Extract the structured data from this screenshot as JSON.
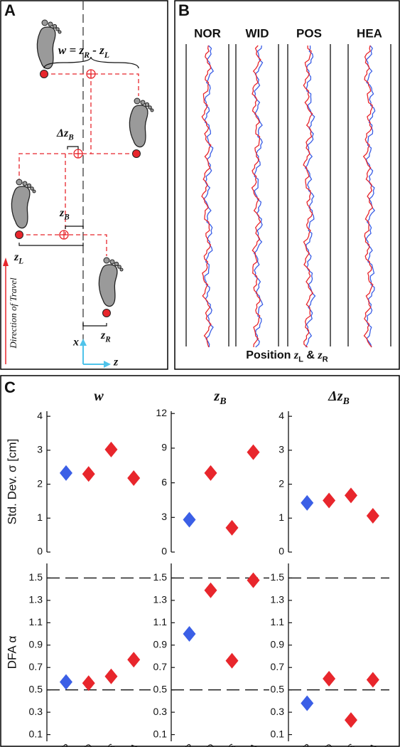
{
  "panel_labels": [
    "A",
    "B",
    "C"
  ],
  "diagram": {
    "width": [
      {
        "t": "w = z"
      },
      {
        "t": "R",
        "sub": true
      },
      {
        "t": " - z"
      },
      {
        "t": "L",
        "sub": true
      }
    ],
    "delta_zb": [
      {
        "t": "Δz"
      },
      {
        "t": "B",
        "sub": true
      }
    ],
    "zb": [
      {
        "t": "z"
      },
      {
        "t": "B",
        "sub": true
      }
    ],
    "zl": [
      {
        "t": "z"
      },
      {
        "t": "L",
        "sub": true
      }
    ],
    "zr": [
      {
        "t": "z"
      },
      {
        "t": "R",
        "sub": true
      }
    ],
    "x_axis": "x",
    "z_axis": "z",
    "direction": "Direction of Travel"
  },
  "traces": {
    "conditions": [
      "NOR",
      "WID",
      "POS",
      "HEA"
    ],
    "xlabel": [
      {
        "t": "Position "
      },
      {
        "t": "z",
        "it": true
      },
      {
        "t": "L",
        "sub": true
      },
      {
        "t": " & "
      },
      {
        "t": "z",
        "it": true
      },
      {
        "t": "R",
        "sub": true
      }
    ]
  },
  "chart_data": [
    {
      "type": "diamond",
      "title": [
        {
          "t": "w"
        }
      ],
      "ylabel": "Std. Dev. σ [cm]",
      "values": [
        2.33,
        2.3,
        3.02,
        2.18
      ],
      "colors": [
        "#3b5fe6",
        "#e8262c",
        "#e8262c",
        "#e8262c"
      ],
      "ylim": [
        0,
        4.15
      ],
      "yticks": [
        0,
        1,
        2,
        3,
        4
      ]
    },
    {
      "type": "diamond",
      "title": [
        {
          "t": "z"
        },
        {
          "t": "B",
          "sub": true
        }
      ],
      "values": [
        2.8,
        6.85,
        2.1,
        8.65
      ],
      "colors": [
        "#3b5fe6",
        "#e8262c",
        "#e8262c",
        "#e8262c"
      ],
      "ylim": [
        0,
        12.2
      ],
      "yticks": [
        0,
        3,
        6,
        9,
        12
      ]
    },
    {
      "type": "diamond",
      "title": [
        {
          "t": "Δz"
        },
        {
          "t": "B",
          "sub": true
        }
      ],
      "values": [
        1.45,
        1.52,
        1.67,
        1.07
      ],
      "colors": [
        "#3b5fe6",
        "#e8262c",
        "#e8262c",
        "#e8262c"
      ],
      "ylim": [
        0,
        4.15
      ],
      "yticks": [
        0,
        1,
        2,
        3,
        4
      ]
    },
    {
      "type": "diamond",
      "ylabel": "DFA α",
      "categories": [
        "NOR",
        "WID",
        "POS",
        "HEA"
      ],
      "values": [
        0.57,
        0.56,
        0.62,
        0.77
      ],
      "colors": [
        "#3b5fe6",
        "#e8262c",
        "#e8262c",
        "#e8262c"
      ],
      "ylim": [
        0.04,
        1.63
      ],
      "yticks": [
        0.1,
        0.3,
        0.5,
        0.7,
        0.9,
        1.1,
        1.3,
        1.5
      ],
      "ref_lines": [
        0.5,
        1.5
      ]
    },
    {
      "type": "diamond",
      "categories": [
        "NOR",
        "WID",
        "POS",
        "HEA"
      ],
      "values": [
        1.0,
        1.39,
        0.76,
        1.48
      ],
      "colors": [
        "#3b5fe6",
        "#e8262c",
        "#e8262c",
        "#e8262c"
      ],
      "ylim": [
        0.04,
        1.63
      ],
      "yticks": [
        0.1,
        0.3,
        0.5,
        0.7,
        0.9,
        1.1,
        1.3,
        1.5
      ],
      "ref_lines": [
        0.5,
        1.5
      ]
    },
    {
      "type": "diamond",
      "categories": [
        "NOR",
        "WID",
        "POS",
        "HEA"
      ],
      "values": [
        0.38,
        0.6,
        0.23,
        0.59
      ],
      "colors": [
        "#3b5fe6",
        "#e8262c",
        "#e8262c",
        "#e8262c"
      ],
      "ylim": [
        0.04,
        1.63
      ],
      "yticks": [
        0.1,
        0.3,
        0.5,
        0.7,
        0.9,
        1.1,
        1.3,
        1.5
      ],
      "ref_lines": [
        0.5,
        1.5
      ]
    }
  ]
}
